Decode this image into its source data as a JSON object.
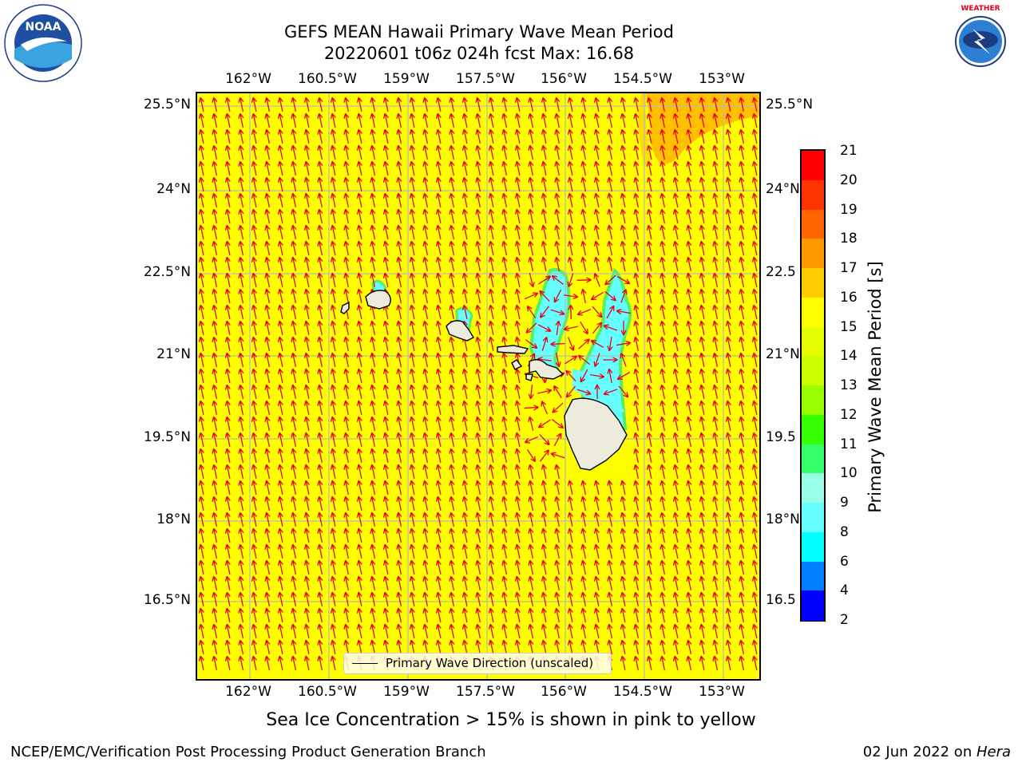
{
  "header": {
    "title_line1": "GEFS MEAN Hawaii Primary Wave Mean Period",
    "title_line2": "20220601 t06z 024h fcst   Max: 16.68"
  },
  "logos": {
    "noaa_text": "NOAA",
    "noaa_ring": "NATIONAL OCEANIC AND ATMOSPHERIC ADMINISTRATION · U.S. DEPARTMENT OF COMMERCE",
    "nws_ring": "NATIONAL WEATHER SERVICE"
  },
  "map": {
    "lon_labels": [
      "162°W",
      "160.5°W",
      "159°W",
      "157.5°W",
      "156°W",
      "154.5°W",
      "153°W"
    ],
    "lat_labels": [
      "25.5°N",
      "24°N",
      "22.5°N",
      "21°N",
      "19.5°N",
      "18°N",
      "16.5°N"
    ],
    "right_lat_labels": [
      "25.5°N",
      "24°N",
      "22.5",
      "21°N",
      "19.5",
      "18°N",
      "16.5"
    ],
    "legend_label": "Primary Wave Direction (unscaled)",
    "colors": {
      "background_field": "#ffff00",
      "high_period": "#ffc000",
      "low_period": "#66ffff",
      "land": "#ecebdc",
      "arrow": "#e8001a",
      "grid": "#b8b8b8"
    }
  },
  "colorbar": {
    "title": "Primary Wave Mean Period [s]",
    "tick_labels": [
      "21",
      "20",
      "19",
      "18",
      "17",
      "16",
      "15",
      "14",
      "13",
      "12",
      "11",
      "10",
      "9",
      "8",
      "6",
      "4",
      "2"
    ],
    "colors": [
      "#ff0000",
      "#ff3300",
      "#ff6600",
      "#ff9900",
      "#ffcc00",
      "#ffff00",
      "#e6ff00",
      "#ccff00",
      "#99ff00",
      "#33ff00",
      "#33ff66",
      "#99ffe6",
      "#66ffff",
      "#00ffff",
      "#0080ff",
      "#0000ff"
    ]
  },
  "annotations": {
    "sea_ice_note": "Sea Ice Concentration > 15% is shown in pink to yellow",
    "producer": "NCEP/EMC/Verification Post Processing Product Generation Branch",
    "date_prefix": "02 Jun 2022 on ",
    "host": "Hera"
  }
}
